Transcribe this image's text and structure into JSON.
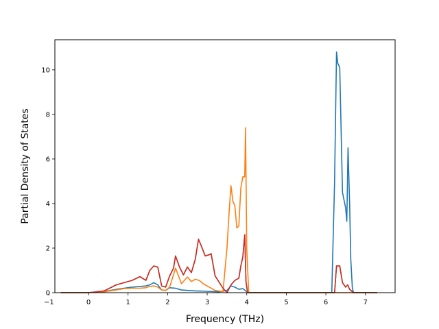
{
  "chart_data": {
    "type": "line",
    "title": "",
    "xlabel": "Frequency (THz)",
    "ylabel": "Partial Density of States",
    "xlim": [
      -0.85,
      7.75
    ],
    "ylim": [
      0,
      11.35
    ],
    "xticks": [
      -1,
      0,
      1,
      2,
      3,
      4,
      5,
      6,
      7
    ],
    "yticks": [
      0,
      2,
      4,
      6,
      8,
      10
    ],
    "grid": false,
    "legend": "none",
    "series": [
      {
        "color": "#1f77b4",
        "x": [
          -0.7,
          0,
          0.4,
          0.7,
          0.9,
          1.1,
          1.3,
          1.45,
          1.55,
          1.65,
          1.75,
          1.85,
          1.95,
          2.05,
          2.2,
          2.35,
          2.5,
          2.7,
          3.0,
          3.3,
          3.5,
          3.6,
          3.7,
          3.8,
          3.9,
          4.0,
          4.05,
          4.5,
          5.0,
          5.5,
          6.0,
          6.15,
          6.22,
          6.27,
          6.3,
          6.35,
          6.42,
          6.5,
          6.53,
          6.56,
          6.6,
          6.63,
          6.67,
          6.7,
          6.8,
          7.0,
          7.3
        ],
        "y": [
          0,
          0,
          0.05,
          0.15,
          0.2,
          0.25,
          0.28,
          0.3,
          0.35,
          0.45,
          0.35,
          0.12,
          0.1,
          0.22,
          0.2,
          0.12,
          0.1,
          0.08,
          0.06,
          0.04,
          0.1,
          0.3,
          0.25,
          0.15,
          0.18,
          0.05,
          0,
          0,
          0,
          0,
          0,
          0,
          5.0,
          10.8,
          10.3,
          10.1,
          4.5,
          3.8,
          3.2,
          6.5,
          4.0,
          1.5,
          0.2,
          0,
          0,
          0,
          0
        ]
      },
      {
        "color": "#ff7f0e",
        "x": [
          -0.7,
          0,
          0.4,
          0.7,
          0.9,
          1.1,
          1.3,
          1.45,
          1.55,
          1.65,
          1.75,
          1.85,
          1.95,
          2.05,
          2.2,
          2.35,
          2.5,
          2.6,
          2.7,
          2.8,
          2.9,
          3.0,
          3.2,
          3.4,
          3.5,
          3.55,
          3.6,
          3.65,
          3.7,
          3.75,
          3.8,
          3.85,
          3.9,
          3.95,
          3.97,
          4.0,
          4.05,
          4.5,
          5.0,
          5.5,
          6.0,
          6.5,
          7.0,
          7.3
        ],
        "y": [
          0,
          0,
          0.04,
          0.12,
          0.18,
          0.2,
          0.2,
          0.22,
          0.28,
          0.3,
          0.25,
          0.12,
          0.1,
          0.25,
          1.1,
          0.4,
          0.7,
          0.5,
          0.6,
          0.55,
          0.4,
          0.3,
          0.1,
          0.05,
          2.0,
          3.5,
          4.8,
          4.1,
          3.9,
          2.9,
          3.0,
          4.7,
          5.2,
          5.2,
          7.4,
          2.0,
          0,
          0,
          0,
          0,
          0,
          0,
          0,
          0
        ]
      },
      {
        "color": "#2ca02c",
        "x": [
          -0.7,
          0,
          0.4,
          0.7,
          0.9,
          1.1,
          1.3,
          1.45,
          1.55,
          1.65,
          1.75,
          1.85,
          1.95,
          2.05,
          2.15,
          2.2,
          2.3,
          2.4,
          2.5,
          2.6,
          2.7,
          2.78,
          2.85,
          2.95,
          3.05,
          3.1,
          3.2,
          3.4,
          3.5,
          3.6,
          3.7,
          3.8,
          3.85,
          3.9,
          3.95,
          3.98,
          4.02,
          4.5,
          5.0,
          5.5,
          6.0,
          6.22,
          6.27,
          6.35,
          6.42,
          6.5,
          6.55,
          6.6,
          6.7,
          7.0,
          7.3
        ],
        "y": [
          0,
          0,
          0.08,
          0.35,
          0.45,
          0.55,
          0.72,
          0.55,
          1.0,
          1.2,
          1.15,
          0.3,
          0.25,
          0.75,
          1.1,
          1.65,
          1.15,
          0.8,
          1.15,
          0.9,
          1.5,
          2.4,
          2.1,
          1.65,
          1.7,
          1.75,
          0.75,
          0.2,
          0,
          0.35,
          0.55,
          0.65,
          1.2,
          1.6,
          2.6,
          0.5,
          0,
          0,
          0,
          0,
          0,
          0,
          1.2,
          1.2,
          0.45,
          0.25,
          0.35,
          0.15,
          0,
          0,
          0
        ]
      },
      {
        "color": "#d62728",
        "x": [
          -0.7,
          0,
          0.4,
          0.7,
          0.9,
          1.1,
          1.3,
          1.45,
          1.55,
          1.65,
          1.75,
          1.85,
          1.95,
          2.05,
          2.15,
          2.2,
          2.3,
          2.4,
          2.5,
          2.6,
          2.7,
          2.78,
          2.85,
          2.95,
          3.05,
          3.1,
          3.2,
          3.4,
          3.5,
          3.6,
          3.7,
          3.8,
          3.85,
          3.9,
          3.95,
          3.98,
          4.02,
          4.5,
          5.0,
          5.5,
          6.0,
          6.22,
          6.27,
          6.35,
          6.42,
          6.5,
          6.55,
          6.6,
          6.7,
          7.0,
          7.3
        ],
        "y": [
          0,
          0,
          0.08,
          0.35,
          0.45,
          0.55,
          0.72,
          0.55,
          1.0,
          1.2,
          1.15,
          0.3,
          0.25,
          0.75,
          1.1,
          1.65,
          1.15,
          0.8,
          1.15,
          0.9,
          1.5,
          2.4,
          2.1,
          1.65,
          1.7,
          1.75,
          0.75,
          0.2,
          0,
          0.35,
          0.55,
          0.65,
          1.2,
          1.6,
          2.6,
          0.5,
          0,
          0,
          0,
          0,
          0,
          0,
          1.2,
          1.2,
          0.45,
          0.25,
          0.35,
          0.15,
          0,
          0,
          0
        ]
      }
    ]
  }
}
